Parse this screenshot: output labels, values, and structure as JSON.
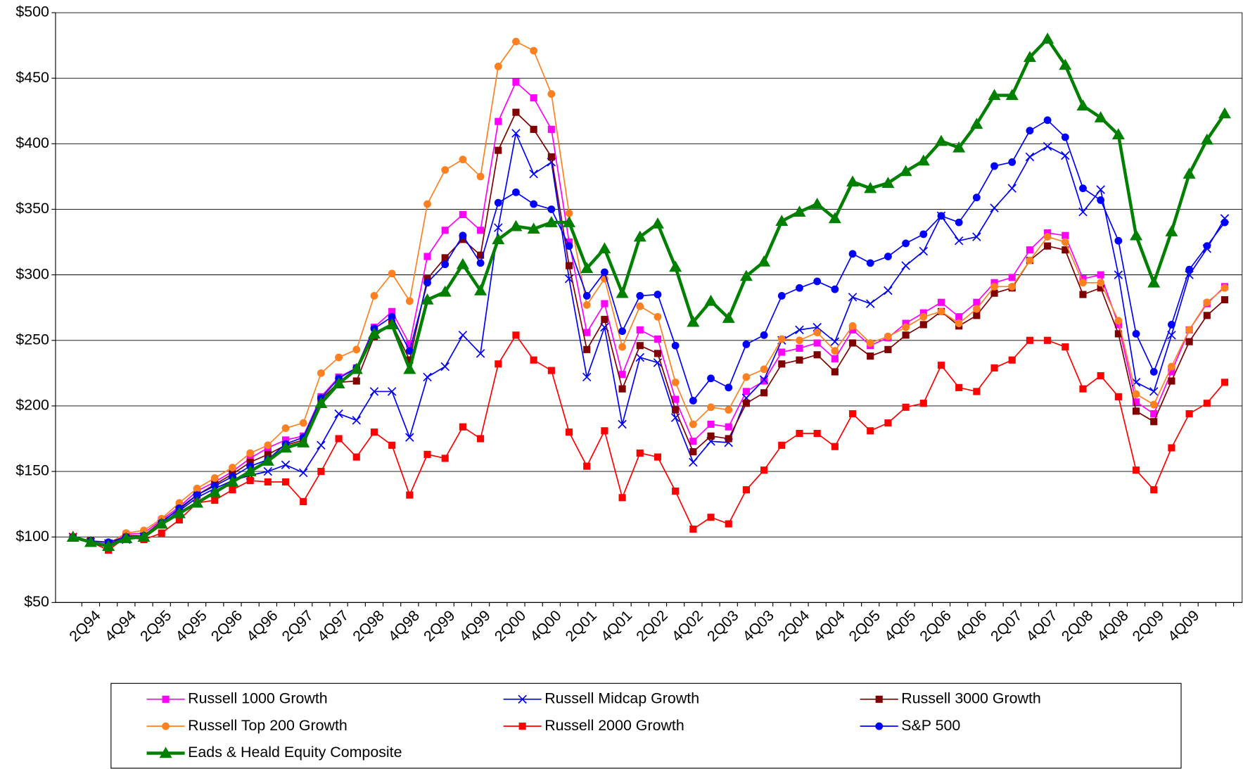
{
  "chart_data": {
    "type": "line",
    "categories": [
      null,
      "2Q94",
      null,
      "4Q94",
      null,
      "2Q95",
      null,
      "4Q95",
      null,
      "2Q96",
      null,
      "4Q96",
      null,
      "2Q97",
      null,
      "4Q97",
      null,
      "2Q98",
      null,
      "4Q98",
      null,
      "2Q99",
      null,
      "4Q99",
      null,
      "2Q00",
      null,
      "4Q00",
      null,
      "2Q01",
      null,
      "4Q01",
      null,
      "2Q02",
      null,
      "4Q02",
      null,
      "2Q03",
      null,
      "4Q03",
      null,
      "2Q04",
      null,
      "4Q04",
      null,
      "2Q05",
      null,
      "4Q05",
      null,
      "2Q06",
      null,
      "4Q06",
      null,
      "2Q07",
      null,
      "4Q07",
      null,
      "2Q08",
      null,
      "4Q08",
      null,
      "2Q09",
      null,
      "4Q09",
      null,
      null
    ],
    "ylim": [
      50,
      500
    ],
    "yticks": [
      {
        "value": 50,
        "label": "$50"
      },
      {
        "value": 100,
        "label": "$100"
      },
      {
        "value": 150,
        "label": "$150"
      },
      {
        "value": 200,
        "label": "$200"
      },
      {
        "value": 250,
        "label": "$250"
      },
      {
        "value": 300,
        "label": "$300"
      },
      {
        "value": 350,
        "label": "$350"
      },
      {
        "value": 400,
        "label": "$400"
      },
      {
        "value": 450,
        "label": "$450"
      },
      {
        "value": 500,
        "label": "$500"
      }
    ],
    "grid": true,
    "legend": "bottom",
    "series": [
      {
        "name": "Russell 1000 Growth",
        "color": "#ff00ff",
        "marker": "square",
        "values": [
          100,
          97,
          95,
          102,
          103,
          113,
          123,
          135,
          142,
          150,
          160,
          168,
          174,
          177,
          207,
          222,
          229,
          260,
          272,
          247,
          314,
          334,
          346,
          334,
          417,
          447,
          435,
          411,
          325,
          256,
          278,
          224,
          258,
          251,
          205,
          173,
          186,
          184,
          211,
          219,
          241,
          244,
          248,
          236,
          258,
          246,
          252,
          263,
          271,
          279,
          268,
          279,
          294,
          298,
          319,
          332,
          330,
          297,
          300,
          262,
          203,
          194,
          226,
          258,
          278,
          291
        ]
      },
      {
        "name": "Russell Midcap Growth",
        "color": "#0000ff",
        "marker": "x",
        "values": [
          100,
          96,
          95,
          98,
          100,
          110,
          120,
          130,
          137,
          143,
          147,
          150,
          155,
          149,
          170,
          194,
          189,
          211,
          211,
          176,
          222,
          230,
          254,
          240,
          336,
          408,
          377,
          386,
          297,
          222,
          260,
          186,
          237,
          233,
          191,
          157,
          173,
          172,
          206,
          220,
          250,
          258,
          260,
          249,
          283,
          278,
          288,
          307,
          318,
          345,
          326,
          329,
          351,
          366,
          390,
          398,
          391,
          348,
          365,
          300,
          218,
          211,
          254,
          300,
          320,
          343
        ]
      },
      {
        "name": "Russell 3000 Growth",
        "color": "#800000",
        "marker": "square",
        "values": [
          100,
          97,
          94,
          101,
          101,
          112,
          121,
          132,
          140,
          148,
          157,
          163,
          170,
          174,
          205,
          218,
          219,
          253,
          263,
          235,
          297,
          313,
          327,
          315,
          395,
          424,
          411,
          390,
          307,
          243,
          266,
          213,
          246,
          240,
          197,
          165,
          177,
          175,
          202,
          210,
          232,
          235,
          239,
          226,
          248,
          238,
          243,
          254,
          262,
          272,
          261,
          269,
          286,
          290,
          311,
          322,
          319,
          285,
          290,
          255,
          196,
          188,
          219,
          249,
          269,
          281
        ]
      },
      {
        "name": "Russell Top 200 Growth",
        "color": "#ff8020",
        "marker": "circle",
        "values": [
          100,
          97,
          95,
          103,
          105,
          114,
          126,
          137,
          145,
          153,
          164,
          170,
          183,
          187,
          225,
          237,
          243,
          284,
          301,
          280,
          354,
          380,
          388,
          375,
          459,
          478,
          471,
          438,
          347,
          277,
          297,
          245,
          276,
          268,
          218,
          186,
          199,
          197,
          222,
          228,
          251,
          250,
          256,
          242,
          261,
          248,
          253,
          260,
          268,
          272,
          263,
          274,
          291,
          291,
          311,
          329,
          325,
          294,
          294,
          265,
          209,
          201,
          230,
          258,
          279,
          290
        ]
      },
      {
        "name": "Russell 2000 Growth",
        "color": "#ff0000",
        "marker": "square",
        "values": [
          100,
          96,
          90,
          100,
          98,
          103,
          113,
          126,
          128,
          136,
          143,
          142,
          142,
          127,
          150,
          175,
          161,
          180,
          170,
          132,
          163,
          160,
          184,
          175,
          232,
          254,
          235,
          227,
          180,
          154,
          181,
          130,
          164,
          161,
          135,
          106,
          115,
          110,
          136,
          151,
          170,
          179,
          179,
          169,
          194,
          181,
          187,
          199,
          202,
          231,
          214,
          211,
          229,
          235,
          250,
          250,
          245,
          213,
          223,
          207,
          151,
          136,
          168,
          194,
          202,
          218
        ]
      },
      {
        "name": "S&P 500",
        "color": "#0000ff",
        "marker": "circle",
        "values": [
          100,
          97,
          96,
          100,
          101,
          111,
          122,
          132,
          139,
          146,
          154,
          159,
          171,
          176,
          206,
          221,
          229,
          259,
          268,
          242,
          294,
          308,
          330,
          309,
          355,
          363,
          354,
          350,
          322,
          284,
          302,
          257,
          284,
          285,
          246,
          204,
          221,
          214,
          247,
          254,
          284,
          290,
          295,
          289,
          316,
          309,
          314,
          324,
          331,
          345,
          340,
          359,
          383,
          386,
          410,
          418,
          405,
          366,
          357,
          326,
          255,
          226,
          262,
          304,
          322,
          340
        ]
      },
      {
        "name": "Eads & Heald Equity Composite",
        "color": "#008000",
        "marker": "triangle",
        "width": 4,
        "values": [
          100,
          96,
          93,
          99,
          100,
          110,
          118,
          126,
          134,
          142,
          150,
          158,
          168,
          172,
          202,
          217,
          228,
          255,
          262,
          228,
          281,
          287,
          308,
          288,
          327,
          337,
          335,
          340,
          340,
          305,
          320,
          286,
          329,
          339,
          306,
          264,
          280,
          267,
          299,
          310,
          341,
          348,
          354,
          343,
          371,
          366,
          370,
          379,
          387,
          402,
          397,
          415,
          437,
          437,
          466,
          480,
          460,
          429,
          420,
          407,
          330,
          294,
          333,
          377,
          403,
          423
        ]
      }
    ]
  }
}
